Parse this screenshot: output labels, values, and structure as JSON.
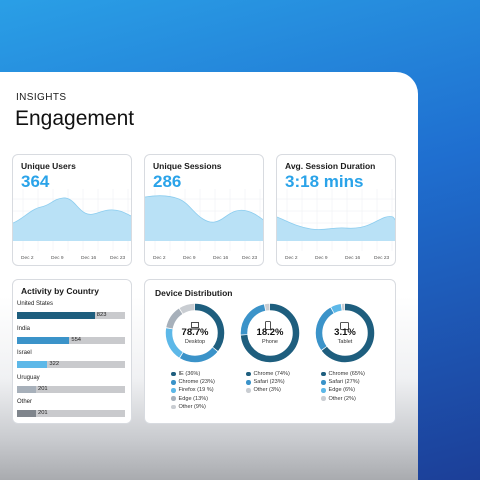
{
  "header": {
    "overline": "INSIGHTS",
    "title": "Engagement"
  },
  "cards": [
    {
      "title": "Unique Users",
      "value": "364",
      "x_labels": [
        "Dec 2",
        "Dec 9",
        "Dec 16",
        "Dec 23"
      ]
    },
    {
      "title": "Unique Sessions",
      "value": "286",
      "x_labels": [
        "Dec 2",
        "Dec 9",
        "Dec 16",
        "Dec 23"
      ]
    },
    {
      "title": "Avg. Session Duration",
      "value": "3:18 mins",
      "x_labels": [
        "Dec 2",
        "Dec 9",
        "Dec 16",
        "Dec 23"
      ]
    }
  ],
  "activity": {
    "title": "Activity by Country",
    "max": 823,
    "rows": [
      {
        "country": "United States",
        "value": "823",
        "n": 823,
        "color": "#1e5e7e"
      },
      {
        "country": "India",
        "value": "554",
        "n": 554,
        "color": "#3b93c9"
      },
      {
        "country": "Israel",
        "value": "322",
        "n": 322,
        "color": "#5db8e8"
      },
      {
        "country": "Uruguay",
        "value": "201",
        "n": 201,
        "color": "#a7b0ba"
      },
      {
        "country": "Other",
        "value": "201",
        "n": 201,
        "color": "#7f858c"
      }
    ]
  },
  "devices": {
    "title": "Device Distribution",
    "items": [
      {
        "pct": "78.7%",
        "name": "Desktop",
        "icon": "laptop-icon",
        "legend": [
          {
            "label": "IE (36%)",
            "color": "#1e5e7e"
          },
          {
            "label": "Chrome (23%)",
            "color": "#3b93c9"
          },
          {
            "label": "Firefox (19 %)",
            "color": "#5db8e8"
          },
          {
            "label": "Edge (13%)",
            "color": "#a7b0ba"
          },
          {
            "label": "Other (9%)",
            "color": "#c9cdd2"
          }
        ],
        "shares": [
          36,
          23,
          19,
          13,
          9
        ]
      },
      {
        "pct": "18.2%",
        "name": "Phone",
        "icon": "phone-icon",
        "legend": [
          {
            "label": "Chrome (74%)",
            "color": "#1e5e7e"
          },
          {
            "label": "Safari (23%)",
            "color": "#3b93c9"
          },
          {
            "label": "Other (3%)",
            "color": "#c9cdd2"
          }
        ],
        "shares": [
          74,
          23,
          3
        ]
      },
      {
        "pct": "3.1%",
        "name": "Tablet",
        "icon": "tablet-icon",
        "legend": [
          {
            "label": "Chrome (65%)",
            "color": "#1e5e7e"
          },
          {
            "label": "Safari (27%)",
            "color": "#3b93c9"
          },
          {
            "label": "Edge (6%)",
            "color": "#5db8e8"
          },
          {
            "label": "Other (2%)",
            "color": "#c9cdd2"
          }
        ],
        "shares": [
          65,
          27,
          6,
          2
        ]
      }
    ]
  }
}
